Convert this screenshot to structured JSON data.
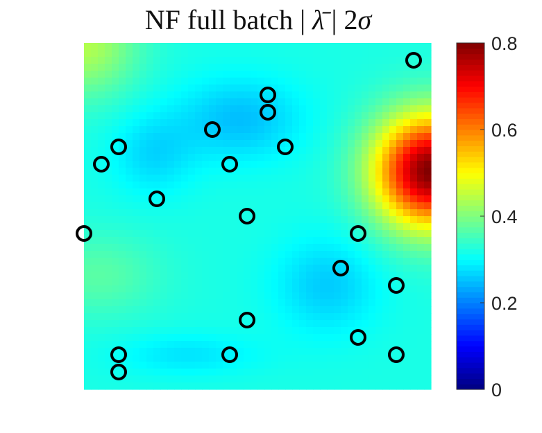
{
  "chart_data": {
    "type": "heatmap",
    "title": "NF full batch | λ̄ | 2σ",
    "xlabel": "",
    "ylabel": "",
    "colormap": "jet",
    "colorbar": {
      "min": 0,
      "max": 0.8,
      "ticks": [
        0,
        0.2,
        0.4,
        0.6,
        0.8
      ],
      "tick_labels": [
        "0",
        "0.2",
        "0.4",
        "0.6",
        "0.8"
      ]
    },
    "field": {
      "background": 0.32,
      "bumps": [
        {
          "cx": 1.0,
          "cy": 0.63,
          "sx": 0.16,
          "sy": 0.16,
          "amp": 0.48
        },
        {
          "cx": 0.0,
          "cy": 1.0,
          "sx": 0.15,
          "sy": 0.15,
          "amp": 0.12
        },
        {
          "cx": 0.04,
          "cy": 0.33,
          "sx": 0.18,
          "sy": 0.12,
          "amp": 0.05
        },
        {
          "cx": 0.45,
          "cy": 0.78,
          "sx": 0.18,
          "sy": 0.12,
          "amp": -0.07
        },
        {
          "cx": 0.2,
          "cy": 0.68,
          "sx": 0.12,
          "sy": 0.12,
          "amp": -0.05
        },
        {
          "cx": 0.7,
          "cy": 0.3,
          "sx": 0.15,
          "sy": 0.14,
          "amp": -0.06
        },
        {
          "cx": 0.3,
          "cy": 0.1,
          "sx": 0.2,
          "sy": 0.06,
          "amp": -0.04
        }
      ]
    },
    "markers": [
      {
        "x": 0.95,
        "y": 0.95
      },
      {
        "x": 0.53,
        "y": 0.85
      },
      {
        "x": 0.53,
        "y": 0.8
      },
      {
        "x": 0.37,
        "y": 0.75
      },
      {
        "x": 0.58,
        "y": 0.7
      },
      {
        "x": 0.1,
        "y": 0.7
      },
      {
        "x": 0.05,
        "y": 0.65
      },
      {
        "x": 0.42,
        "y": 0.65
      },
      {
        "x": 0.21,
        "y": 0.55
      },
      {
        "x": 0.47,
        "y": 0.5
      },
      {
        "x": 0.0,
        "y": 0.45
      },
      {
        "x": 0.79,
        "y": 0.45
      },
      {
        "x": 0.74,
        "y": 0.35
      },
      {
        "x": 0.9,
        "y": 0.3
      },
      {
        "x": 0.47,
        "y": 0.2
      },
      {
        "x": 0.79,
        "y": 0.15
      },
      {
        "x": 0.1,
        "y": 0.1
      },
      {
        "x": 0.42,
        "y": 0.1
      },
      {
        "x": 0.9,
        "y": 0.1
      },
      {
        "x": 0.1,
        "y": 0.05
      }
    ],
    "marker_style": {
      "shape": "circle",
      "fill": "none",
      "edge_color": "#000000"
    },
    "grid": false,
    "axes_visible": false
  }
}
